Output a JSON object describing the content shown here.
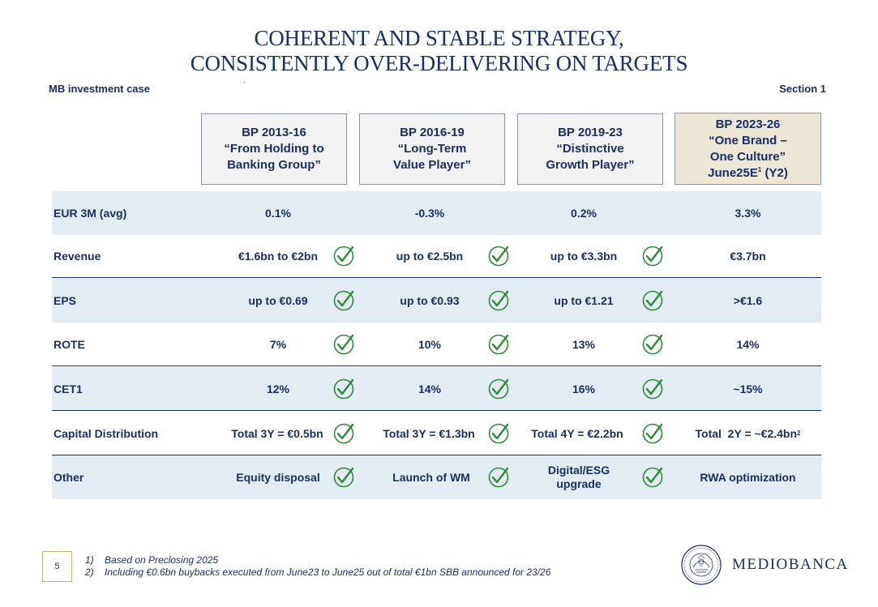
{
  "title": {
    "line1": "COHERENT AND STABLE STRATEGY,",
    "line2": "CONSISTENTLY OVER-DELIVERING ON TARGETS"
  },
  "subtitle_left": "MB investment case",
  "subtitle_right": "Section 1",
  "plans": [
    {
      "l1": "BP 2013-16",
      "l2": "“From Holding to",
      "l3": "Banking Group”",
      "l4": ""
    },
    {
      "l1": "BP 2016-19",
      "l2": "“Long-Term",
      "l3": "Value Player”",
      "l4": ""
    },
    {
      "l1": "BP 2019-23",
      "l2": "“Distinctive",
      "l3": "Growth Player”",
      "l4": ""
    },
    {
      "l1": "BP 2023-26",
      "l2": "“One Brand –",
      "l3": "One Culture”",
      "l4": "June25E",
      "l4_sup": "1",
      "l4_tail": " (Y2)"
    }
  ],
  "rows": [
    {
      "label": "EUR 3M (avg)",
      "values": [
        "0.1%",
        "-0.3%",
        "0.2%",
        "3.3%"
      ]
    },
    {
      "label": "Revenue",
      "values": [
        "€1.6bn to €2bn",
        "up to €2.5bn",
        "up to €3.3bn",
        "€3.7bn"
      ]
    },
    {
      "label": "EPS",
      "values": [
        "up to €0.69",
        "up to €0.93",
        "up to €1.21",
        ">€1.6"
      ]
    },
    {
      "label": "ROTE",
      "values": [
        "7%",
        "10%",
        "13%",
        "14%"
      ]
    },
    {
      "label": "CET1",
      "values": [
        "12%",
        "14%",
        "16%",
        "~15%"
      ]
    },
    {
      "label": "Capital Distribution",
      "values": [
        "Total 3Y = €0.5bn",
        "Total 3Y = €1.3bn",
        "Total 4Y = €2.2bn",
        "Total  2Y = ~€2.4bn"
      ],
      "last_sup": "2"
    },
    {
      "label": "Other",
      "values": [
        "Equity disposal",
        "Launch of WM",
        "Digital/ESG",
        "RWA optimization"
      ],
      "v2_line2": "upgrade"
    }
  ],
  "page_number": "5",
  "footnotes": [
    {
      "num": "1)",
      "text": "Based on Preclosing 2025"
    },
    {
      "num": "2)",
      "text": "Including €0.6bn buybacks executed from June23 to June25 out of total €1bn SBB announced for 23/26"
    }
  ],
  "logo": {
    "name": "MEDIOBANCA"
  },
  "colors": {
    "navy": "#1b2f63",
    "row_shade": "#e3ebf3",
    "header_current": "#ebe6d6",
    "check_green": "#2e8b3a",
    "gold": "#c8b27a"
  }
}
